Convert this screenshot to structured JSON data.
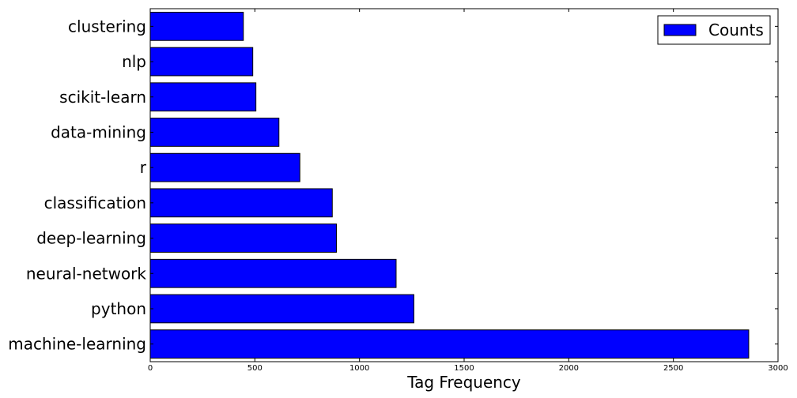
{
  "chart_data": {
    "type": "bar",
    "orientation": "horizontal",
    "categories": [
      "machine-learning",
      "python",
      "neural-network",
      "deep-learning",
      "classification",
      "r",
      "data-mining",
      "scikit-learn",
      "nlp",
      "clustering"
    ],
    "series": [
      {
        "name": "Counts",
        "values": [
          2860,
          1260,
          1175,
          890,
          870,
          715,
          615,
          505,
          490,
          445
        ]
      }
    ],
    "xlabel": "Tag Frequency",
    "ylabel": "",
    "title": "",
    "xlim": [
      0,
      3000
    ],
    "xticks": [
      "0",
      "500",
      "1000",
      "1500",
      "2000",
      "2500",
      "3000"
    ],
    "grid": false,
    "legend_position": "top-right",
    "colors": {
      "bar": "#0000ff",
      "edge": "#000000"
    }
  }
}
